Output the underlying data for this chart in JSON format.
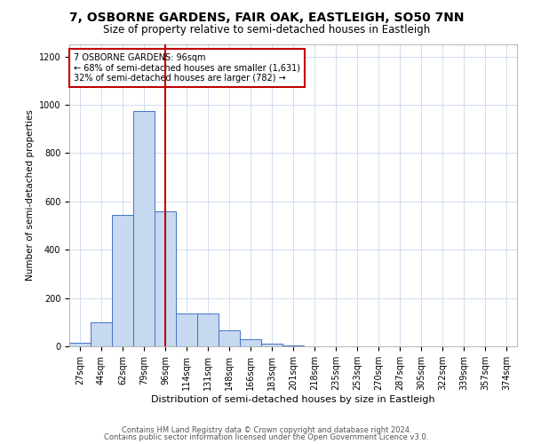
{
  "title": "7, OSBORNE GARDENS, FAIR OAK, EASTLEIGH, SO50 7NN",
  "subtitle": "Size of property relative to semi-detached houses in Eastleigh",
  "xlabel": "Distribution of semi-detached houses by size in Eastleigh",
  "ylabel": "Number of semi-detached properties",
  "categories": [
    "27sqm",
    "44sqm",
    "62sqm",
    "79sqm",
    "96sqm",
    "114sqm",
    "131sqm",
    "148sqm",
    "166sqm",
    "183sqm",
    "201sqm",
    "218sqm",
    "235sqm",
    "253sqm",
    "270sqm",
    "287sqm",
    "305sqm",
    "322sqm",
    "339sqm",
    "357sqm",
    "374sqm"
  ],
  "values": [
    15,
    100,
    545,
    975,
    560,
    135,
    135,
    65,
    30,
    10,
    5,
    0,
    0,
    0,
    0,
    0,
    0,
    0,
    0,
    0,
    0
  ],
  "bar_color": "#c6d9f0",
  "bar_edge_color": "#4472c4",
  "vline_idx": 4,
  "vline_color": "#c00000",
  "annotation_text": "7 OSBORNE GARDENS: 96sqm\n← 68% of semi-detached houses are smaller (1,631)\n32% of semi-detached houses are larger (782) →",
  "ylim": [
    0,
    1250
  ],
  "yticks": [
    0,
    200,
    400,
    600,
    800,
    1000,
    1200
  ],
  "grid_color": "#c8d8ec",
  "footer_line1": "Contains HM Land Registry data © Crown copyright and database right 2024.",
  "footer_line2": "Contains public sector information licensed under the Open Government Licence v3.0.",
  "bg_color": "#ffffff",
  "title_fontsize": 10,
  "subtitle_fontsize": 8.5,
  "ylabel_fontsize": 7.5,
  "xlabel_fontsize": 8,
  "tick_fontsize": 7,
  "annot_fontsize": 7,
  "footer_fontsize": 6
}
